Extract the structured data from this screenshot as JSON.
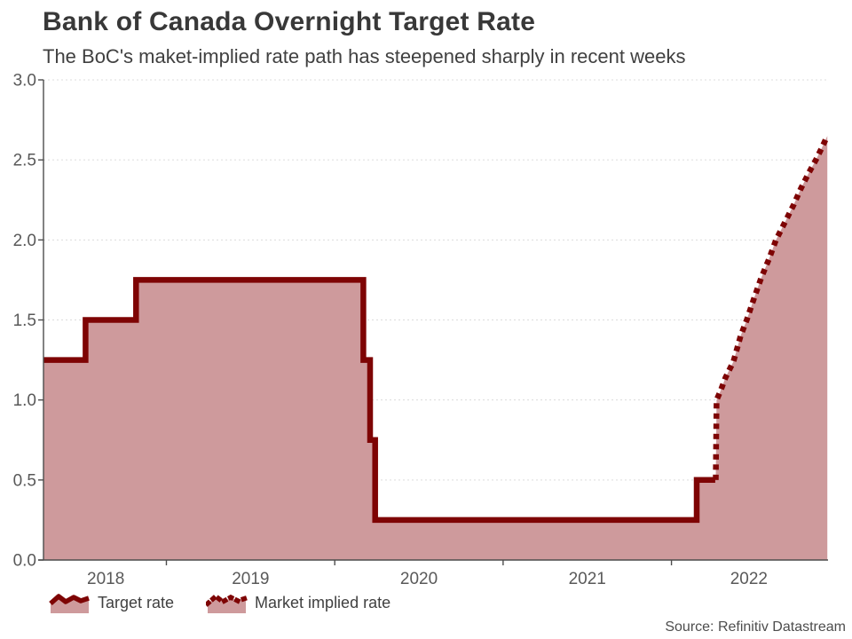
{
  "header": {
    "title": "Bank of Canada Overnight Target Rate",
    "subtitle": "The BoC's maket-implied rate path has steepened sharply in recent weeks"
  },
  "footer": {
    "source": "Source: Refinitiv Datastream"
  },
  "legend": {
    "items": [
      {
        "label": "Target rate",
        "style": "solid"
      },
      {
        "label": "Market implied rate",
        "style": "dotted"
      }
    ]
  },
  "colors": {
    "line": "#7E0404",
    "fill": "#CE9A9C",
    "grid": "#DCDCDC",
    "axis": "#4D4D4D",
    "tick_text": "#595959"
  },
  "chart_data": {
    "type": "area",
    "title": "Bank of Canada Overnight Target Rate",
    "xlabel": "",
    "ylabel": "",
    "x_domain": [
      2018.27,
      2022.93
    ],
    "ylim": [
      0,
      3
    ],
    "grid": "horizontal-dashed",
    "legend_position": "bottom-left",
    "y_ticks": [
      0.0,
      0.5,
      1.0,
      1.5,
      2.0,
      2.5,
      3.0
    ],
    "y_tick_labels": [
      "0.0",
      "0.5",
      "1.0",
      "1.5",
      "2.0",
      "2.5",
      "3.0"
    ],
    "x_boundary_ticks": [
      2019,
      2020,
      2021,
      2022
    ],
    "x_tick_labels": [
      {
        "label": "2018",
        "pos": 2018.64
      },
      {
        "label": "2019",
        "pos": 2019.5
      },
      {
        "label": "2020",
        "pos": 2020.5
      },
      {
        "label": "2021",
        "pos": 2021.5
      },
      {
        "label": "2022",
        "pos": 2022.46
      }
    ],
    "series": [
      {
        "name": "Target rate",
        "style": "solid",
        "points": [
          [
            2018.27,
            1.25
          ],
          [
            2018.52,
            1.25
          ],
          [
            2018.52,
            1.5
          ],
          [
            2018.82,
            1.5
          ],
          [
            2018.82,
            1.75
          ],
          [
            2020.17,
            1.75
          ],
          [
            2020.17,
            1.25
          ],
          [
            2020.21,
            1.25
          ],
          [
            2020.21,
            0.75
          ],
          [
            2020.24,
            0.75
          ],
          [
            2020.24,
            0.25
          ],
          [
            2022.15,
            0.25
          ],
          [
            2022.15,
            0.5
          ],
          [
            2022.26,
            0.5
          ]
        ]
      },
      {
        "name": "Market implied rate",
        "style": "dotted",
        "points": [
          [
            2022.263,
            0.5
          ],
          [
            2022.268,
            1.0
          ],
          [
            2022.289,
            1.05
          ],
          [
            2022.321,
            1.14
          ],
          [
            2022.368,
            1.24
          ],
          [
            2022.411,
            1.4
          ],
          [
            2022.447,
            1.5
          ],
          [
            2022.489,
            1.63
          ],
          [
            2022.532,
            1.76
          ],
          [
            2022.579,
            1.88
          ],
          [
            2022.621,
            2.0
          ],
          [
            2022.674,
            2.11
          ],
          [
            2022.726,
            2.22
          ],
          [
            2022.768,
            2.32
          ],
          [
            2022.816,
            2.42
          ],
          [
            2022.858,
            2.5
          ],
          [
            2022.895,
            2.58
          ],
          [
            2022.926,
            2.65
          ]
        ]
      }
    ]
  }
}
